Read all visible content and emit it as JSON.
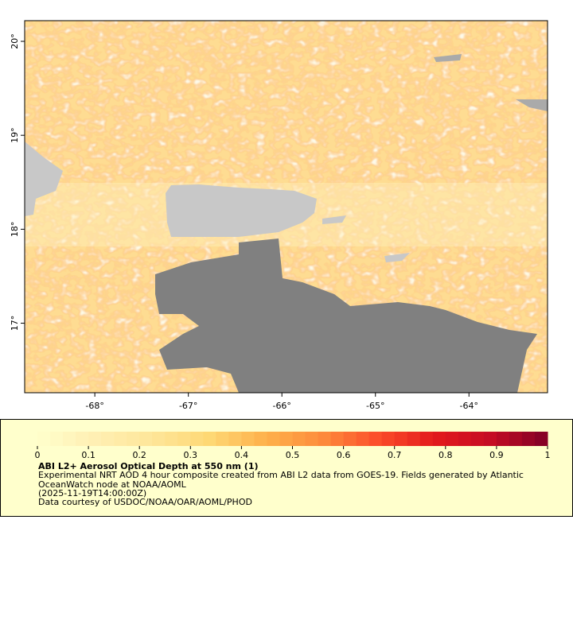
{
  "map": {
    "xlim": [
      -68.75,
      -63.16
    ],
    "ylim": [
      16.26,
      20.22
    ],
    "xticks": [
      {
        "value": -68,
        "label": "-68°"
      },
      {
        "value": -67,
        "label": "-67°"
      },
      {
        "value": -66,
        "label": "-66°"
      },
      {
        "value": -65,
        "label": "-65°"
      },
      {
        "value": -64,
        "label": "-64°"
      }
    ],
    "yticks": [
      {
        "value": 17,
        "label": "17°"
      },
      {
        "value": 18,
        "label": "18°"
      },
      {
        "value": 19,
        "label": "19°"
      },
      {
        "value": 20,
        "label": "20°"
      }
    ]
  },
  "legend": {
    "range": [
      0,
      1
    ],
    "ticks": [
      0,
      0.1,
      0.2,
      0.3,
      0.4,
      0.5,
      0.6,
      0.7,
      0.8,
      0.9,
      1
    ],
    "colors": [
      "#ffffcc",
      "#ffefb3",
      "#fee69a",
      "#fed976",
      "#feb24c",
      "#fd8d3c",
      "#fc4e2a",
      "#e31a1c",
      "#c50c24",
      "#800026"
    ],
    "title": "ABI L2+ Aerosol Optical Depth at 550 nm (1)",
    "description": [
      "Experimental NRT AOD 4 hour composite created from ABI L2 data from GOES-19. Fields generated by Atlantic",
      "OceanWatch node at NOAA/AOML",
      "(2025-11-19T14:00:00Z)",
      "Data courtesy of USDOC/NOAA/OAR/AOML/PHOD"
    ]
  }
}
